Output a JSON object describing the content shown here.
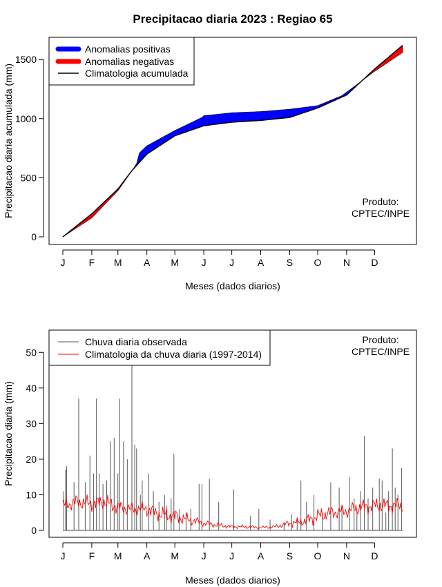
{
  "title": "Precipitacao diaria 2023 : Regiao 65",
  "chart_data": [
    {
      "type": "area",
      "name": "accumulated",
      "ylabel": "Precipitacao diaria acumulada (mm)",
      "xlabel": "Meses (dados diarios)",
      "month_labels": [
        "J",
        "F",
        "M",
        "A",
        "M",
        "J",
        "J",
        "A",
        "S",
        "O",
        "N",
        "D"
      ],
      "month_days": [
        1,
        32,
        60,
        91,
        121,
        152,
        182,
        213,
        244,
        274,
        305,
        335
      ],
      "xlim": [
        1,
        365
      ],
      "ylim": [
        0,
        1650
      ],
      "yticks": [
        0,
        500,
        1000,
        1500
      ],
      "legend": [
        {
          "label": "Anomalias positivas",
          "color": "#0000ff"
        },
        {
          "label": "Anomalias negativas",
          "color": "#ff0000"
        },
        {
          "label": "Climatologia acumulada",
          "color": "#000000"
        }
      ],
      "product_label": [
        "Produto:",
        "CPTEC/INPE"
      ],
      "climatology_knots": {
        "day": [
          1,
          32,
          60,
          75,
          91,
          121,
          152,
          182,
          213,
          244,
          274,
          305,
          335,
          365
        ],
        "value": [
          0,
          195,
          405,
          560,
          700,
          855,
          940,
          970,
          985,
          1010,
          1090,
          1200,
          1420,
          1620
        ]
      },
      "observed_knots": {
        "day": [
          1,
          32,
          60,
          75,
          80,
          83,
          91,
          121,
          150,
          152,
          182,
          213,
          244,
          274,
          300,
          335,
          365
        ],
        "value": [
          0,
          160,
          390,
          560,
          620,
          710,
          770,
          900,
          1010,
          1025,
          1050,
          1060,
          1080,
          1110,
          1195,
          1400,
          1560
        ]
      }
    },
    {
      "type": "line",
      "name": "daily",
      "ylabel": "Precipitacao diaria (mm)",
      "xlabel": "Meses (dados diarios)",
      "month_labels": [
        "J",
        "F",
        "M",
        "A",
        "M",
        "J",
        "J",
        "A",
        "S",
        "O",
        "N",
        "D"
      ],
      "month_days": [
        1,
        32,
        60,
        91,
        121,
        152,
        182,
        213,
        244,
        274,
        305,
        335
      ],
      "xlim": [
        1,
        365
      ],
      "ylim": [
        0,
        55
      ],
      "yticks": [
        0,
        10,
        20,
        30,
        40,
        50
      ],
      "legend": [
        {
          "label": "Chuva diaria observada",
          "color": "#555555"
        },
        {
          "label": "Climatologia da chuva diaria (1997-2014)",
          "color": "#ff0000"
        }
      ],
      "product_label": [
        "Produto:",
        "CPTEC/INPE"
      ],
      "observed_peaks": [
        [
          2,
          11
        ],
        [
          4,
          17
        ],
        [
          5,
          18
        ],
        [
          13,
          13.5
        ],
        [
          18,
          37
        ],
        [
          25,
          13.5
        ],
        [
          30,
          21
        ],
        [
          34,
          16
        ],
        [
          37,
          37
        ],
        [
          40,
          16
        ],
        [
          44,
          13
        ],
        [
          48,
          14
        ],
        [
          52,
          25
        ],
        [
          56,
          26
        ],
        [
          60,
          16
        ],
        [
          62,
          37
        ],
        [
          66,
          25
        ],
        [
          70,
          20
        ],
        [
          75,
          47
        ],
        [
          78,
          24
        ],
        [
          80,
          23
        ],
        [
          84,
          10
        ],
        [
          86,
          14
        ],
        [
          93,
          16
        ],
        [
          98,
          11
        ],
        [
          104,
          8
        ],
        [
          110,
          10
        ],
        [
          112,
          7
        ],
        [
          117,
          9
        ],
        [
          120,
          21.5
        ],
        [
          126,
          6
        ],
        [
          133,
          5
        ],
        [
          138,
          6
        ],
        [
          147,
          13
        ],
        [
          150,
          13
        ],
        [
          158,
          14.5
        ],
        [
          168,
          8
        ],
        [
          184,
          11.5
        ],
        [
          202,
          4
        ],
        [
          211,
          6
        ],
        [
          223,
          3
        ],
        [
          238,
          2
        ],
        [
          246,
          4.5
        ],
        [
          252,
          3
        ],
        [
          256,
          14
        ],
        [
          262,
          8
        ],
        [
          270,
          10
        ],
        [
          279,
          5
        ],
        [
          288,
          13.5
        ],
        [
          297,
          12
        ],
        [
          300,
          7
        ],
        [
          308,
          15
        ],
        [
          313,
          9
        ],
        [
          316,
          6
        ],
        [
          320,
          11
        ],
        [
          324,
          26.5
        ],
        [
          328,
          9
        ],
        [
          333,
          12
        ],
        [
          340,
          14.5
        ],
        [
          343,
          14
        ],
        [
          347,
          5
        ],
        [
          350,
          11
        ],
        [
          354,
          23
        ],
        [
          357,
          12
        ],
        [
          360,
          10
        ],
        [
          364,
          17.5
        ]
      ],
      "climatology_knots": {
        "day": [
          1,
          15,
          30,
          45,
          60,
          75,
          91,
          105,
          121,
          136,
          152,
          166,
          182,
          197,
          213,
          228,
          244,
          259,
          274,
          289,
          305,
          320,
          335,
          350,
          365
        ],
        "value": [
          7,
          8,
          7.5,
          8,
          6.5,
          6,
          6,
          4.5,
          4,
          3,
          2,
          1.5,
          1,
          1,
          0.8,
          1,
          2,
          2.5,
          4,
          5,
          5.5,
          6.5,
          7,
          7,
          7
        ]
      }
    }
  ]
}
